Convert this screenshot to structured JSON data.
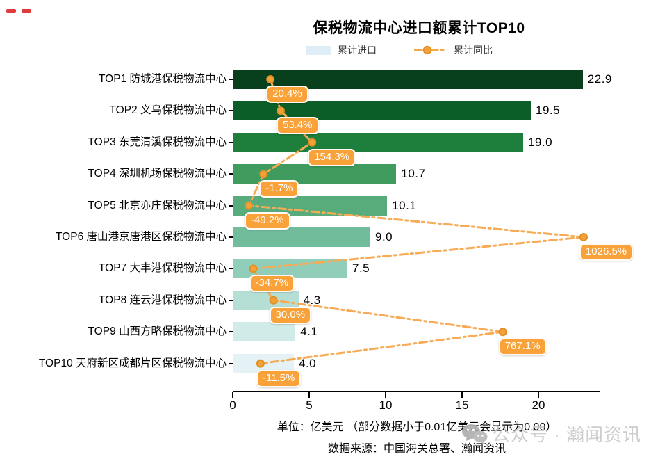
{
  "page": {
    "decoration_dash_color": "#e03a3a"
  },
  "chart_data": {
    "type": "bar",
    "orientation": "horizontal",
    "title": "保税物流中心进口额累计TOP10",
    "legend_position": "top",
    "grid": false,
    "legend": {
      "import_label": "累计进口",
      "import_swatch_color": "#dfeef6",
      "yoy_label": "累计同比",
      "yoy_line_color": "#f6a848"
    },
    "categories": [
      "TOP1 防城港保税物流中心",
      "TOP2 义乌保税物流中心",
      "TOP3 东莞清溪保税物流中心",
      "TOP4 深圳机场保税物流中心",
      "TOP5 北京亦庄保税物流中心",
      "TOP6 唐山港京唐港区保税物流中心",
      "TOP7 大丰港保税物流中心",
      "TOP8 连云港保税物流中心",
      "TOP9 山西方略保税物流中心",
      "TOP10 天府新区成都片区保税物流中心"
    ],
    "series": [
      {
        "name": "累计进口",
        "unit": "亿美元",
        "values": [
          22.9,
          19.5,
          19.0,
          10.7,
          10.1,
          9.0,
          7.5,
          4.3,
          4.1,
          4.0
        ],
        "value_labels": [
          "22.9",
          "19.5",
          "19.0",
          "10.7",
          "10.1",
          "9.0",
          "7.5",
          "4.3",
          "4.1",
          "4.0"
        ],
        "bar_colors": [
          "#08401d",
          "#0b5e27",
          "#1e7e3b",
          "#3f9c5e",
          "#58ab7b",
          "#70bc9b",
          "#91ceb9",
          "#b5ded4",
          "#d0ebe8",
          "#e4f2f6"
        ]
      },
      {
        "name": "累计同比",
        "unit": "%",
        "values": [
          20.4,
          53.4,
          154.3,
          -1.7,
          -49.2,
          1026.5,
          -34.7,
          30.0,
          767.1,
          -11.5
        ],
        "value_labels": [
          "20.4%",
          "53.4%",
          "154.3%",
          "-1.7%",
          "-49.2%",
          "1026.5%",
          "-34.7%",
          "30.0%",
          "767.1%",
          "-11.5%"
        ],
        "line_color": "#f7ab55",
        "marker_fill": "#f4a137",
        "marker_stroke": "#de8f26",
        "label_bg": "#f9a23a"
      }
    ],
    "x_axis": {
      "ticks": [
        0,
        5,
        10,
        15,
        20
      ],
      "range": [
        0,
        24
      ]
    },
    "pct_axis_range": [
      -100.6,
      1104.8
    ]
  },
  "footer": {
    "unit_note": "单位：亿美元 （部分数据小于0.01亿美元会显示为0.00）",
    "source": "数据来源：中国海关总署、瀚闻资讯"
  },
  "watermark": {
    "icon": "wechat-icon",
    "text": "公众号 · 瀚闻资讯"
  }
}
